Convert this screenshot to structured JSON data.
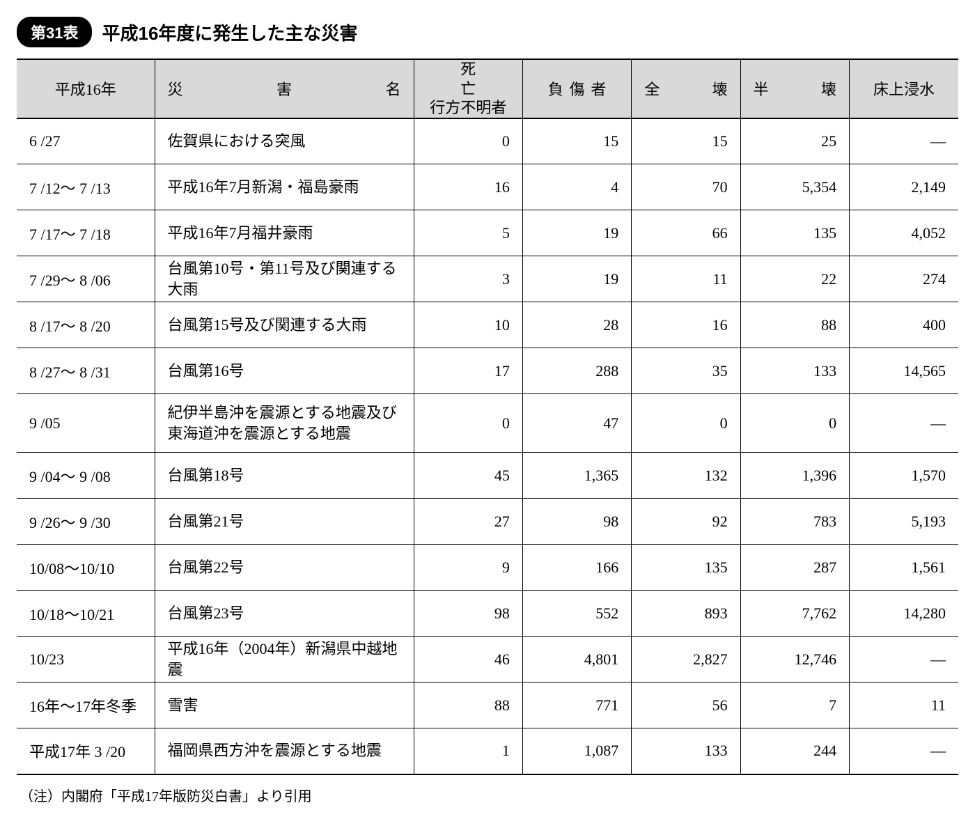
{
  "caption": {
    "badge": "第31表",
    "title": "平成16年度に発生した主な災害"
  },
  "table": {
    "columns": {
      "c0": "平成16年",
      "c1": {
        "a": "災",
        "b": "害",
        "c": "名"
      },
      "c2": {
        "line1a": "死",
        "line1b": "亡",
        "line2": "行方不明者"
      },
      "c3": {
        "a": "負",
        "b": "傷",
        "c": "者"
      },
      "c4": {
        "a": "全",
        "b": "壊"
      },
      "c5": {
        "a": "半",
        "b": "壊"
      },
      "c6": "床上浸水"
    },
    "rows": [
      {
        "date": "6 /27",
        "name": "佐賀県における突風",
        "deaths": "0",
        "injured": "15",
        "destroyed": "15",
        "half": "25",
        "flood": "―"
      },
      {
        "date": "7 /12～ 7 /13",
        "name": "平成16年7月新潟・福島豪雨",
        "deaths": "16",
        "injured": "4",
        "destroyed": "70",
        "half": "5,354",
        "flood": "2,149"
      },
      {
        "date": "7 /17～ 7 /18",
        "name": "平成16年7月福井豪雨",
        "deaths": "5",
        "injured": "19",
        "destroyed": "66",
        "half": "135",
        "flood": "4,052"
      },
      {
        "date": "7 /29～ 8 /06",
        "name": "台風第10号・第11号及び関連する大雨",
        "deaths": "3",
        "injured": "19",
        "destroyed": "11",
        "half": "22",
        "flood": "274"
      },
      {
        "date": "8 /17～ 8 /20",
        "name": "台風第15号及び関連する大雨",
        "deaths": "10",
        "injured": "28",
        "destroyed": "16",
        "half": "88",
        "flood": "400"
      },
      {
        "date": "8 /27～ 8 /31",
        "name": "台風第16号",
        "deaths": "17",
        "injured": "288",
        "destroyed": "35",
        "half": "133",
        "flood": "14,565"
      },
      {
        "date": "9 /05",
        "name": "紀伊半島沖を震源とする地震及び東海道沖を震源とする地震",
        "deaths": "0",
        "injured": "47",
        "destroyed": "0",
        "half": "0",
        "flood": "―",
        "tall": true
      },
      {
        "date": "9 /04～ 9 /08",
        "name": "台風第18号",
        "deaths": "45",
        "injured": "1,365",
        "destroyed": "132",
        "half": "1,396",
        "flood": "1,570"
      },
      {
        "date": "9 /26～ 9 /30",
        "name": "台風第21号",
        "deaths": "27",
        "injured": "98",
        "destroyed": "92",
        "half": "783",
        "flood": "5,193"
      },
      {
        "date": "10/08～10/10",
        "name": "台風第22号",
        "deaths": "9",
        "injured": "166",
        "destroyed": "135",
        "half": "287",
        "flood": "1,561"
      },
      {
        "date": "10/18～10/21",
        "name": "台風第23号",
        "deaths": "98",
        "injured": "552",
        "destroyed": "893",
        "half": "7,762",
        "flood": "14,280"
      },
      {
        "date": "10/23",
        "name": "平成16年（2004年）新潟県中越地震",
        "deaths": "46",
        "injured": "4,801",
        "destroyed": "2,827",
        "half": "12,746",
        "flood": "―"
      },
      {
        "date": "16年～17年冬季",
        "name": "雪害",
        "deaths": "88",
        "injured": "771",
        "destroyed": "56",
        "half": "7",
        "flood": "11"
      },
      {
        "date": "平成17年 3 /20",
        "name": "福岡県西方沖を震源とする地震",
        "deaths": "1",
        "injured": "1,087",
        "destroyed": "133",
        "half": "244",
        "flood": "―"
      }
    ]
  },
  "note": "（注）内閣府「平成17年版防災白書」より引用",
  "style": {
    "header_bg": "#d9d9d9",
    "border_color": "#000000",
    "body_font_size": 22,
    "title_font_size": 26,
    "note_font_size": 20
  }
}
